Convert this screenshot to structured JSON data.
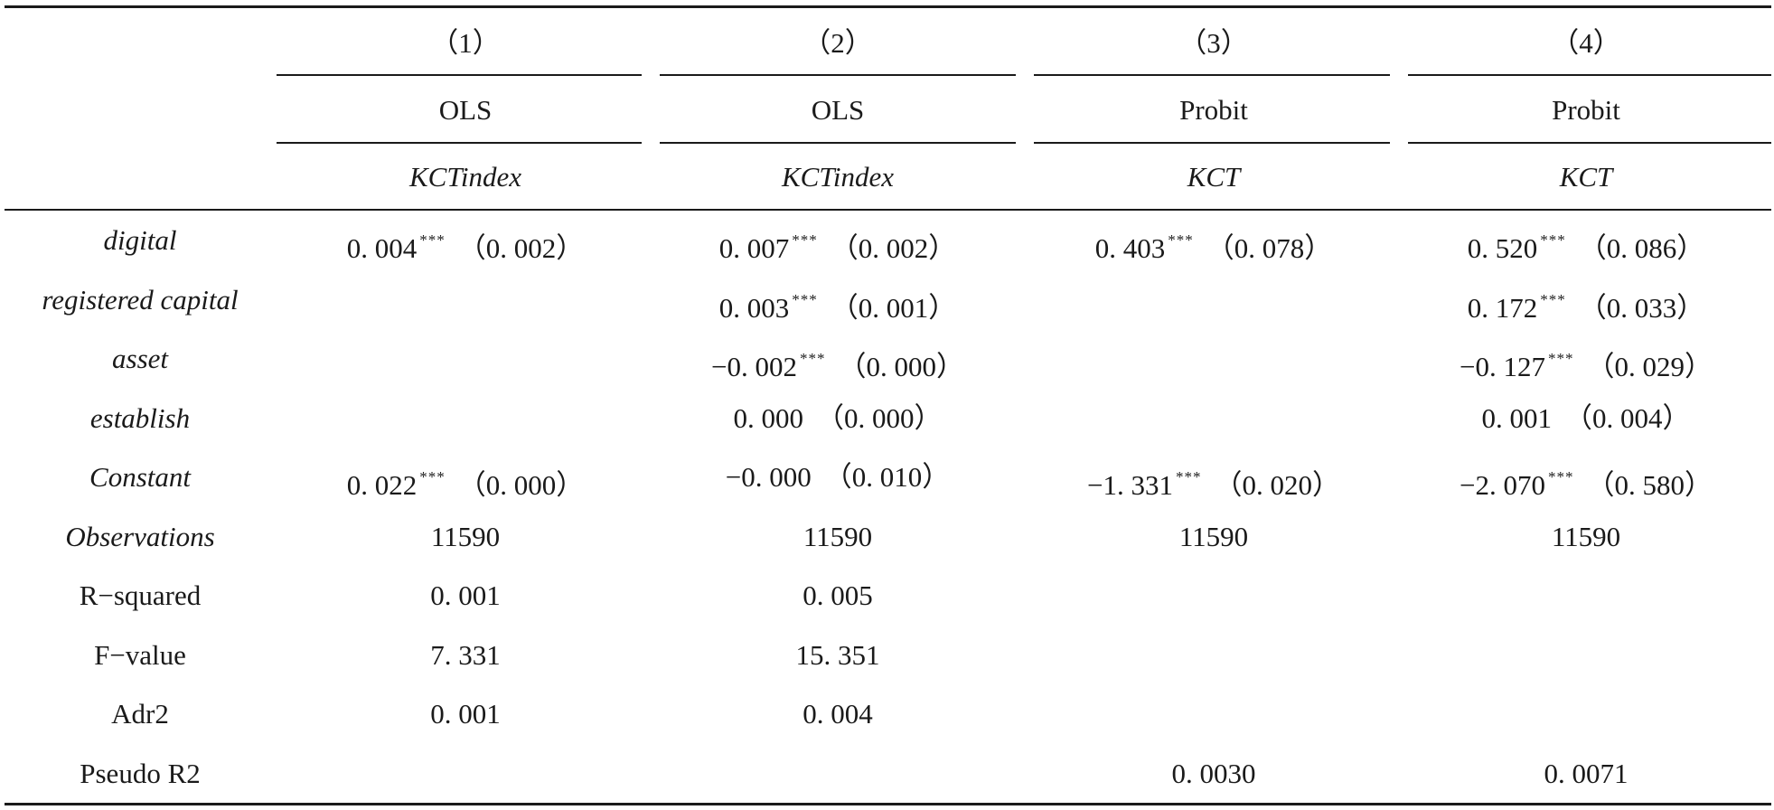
{
  "columns": [
    {
      "number": "（1）",
      "method": "OLS",
      "depvar": "KCTindex"
    },
    {
      "number": "（2）",
      "method": "OLS",
      "depvar": "KCTindex"
    },
    {
      "number": "（3）",
      "method": "Probit",
      "depvar": "KCT"
    },
    {
      "number": "（4）",
      "method": "Probit",
      "depvar": "KCT"
    }
  ],
  "rows": [
    {
      "label": "digital",
      "italic": true,
      "cells": [
        {
          "coef": "0. 004",
          "stars": "***",
          "se": "（0. 002）"
        },
        {
          "coef": "0. 007",
          "stars": "***",
          "se": "（0. 002）"
        },
        {
          "coef": "0. 403",
          "stars": "***",
          "se": "（0. 078）"
        },
        {
          "coef": "0. 520",
          "stars": "***",
          "se": "（0. 086）"
        }
      ]
    },
    {
      "label": "registered capital",
      "italic": true,
      "cells": [
        null,
        {
          "coef": "0. 003",
          "stars": "***",
          "se": "（0. 001）"
        },
        null,
        {
          "coef": "0. 172",
          "stars": "***",
          "se": "（0. 033）"
        }
      ]
    },
    {
      "label": "asset",
      "italic": true,
      "cells": [
        null,
        {
          "coef": "−0. 002",
          "stars": "***",
          "se": "（0. 000）"
        },
        null,
        {
          "coef": "−0. 127",
          "stars": "***",
          "se": "（0. 029）"
        }
      ]
    },
    {
      "label": "establish",
      "italic": true,
      "cells": [
        null,
        {
          "coef": "0. 000",
          "stars": "",
          "se": "（0. 000）"
        },
        null,
        {
          "coef": "0. 001",
          "stars": "",
          "se": "（0. 004）"
        }
      ]
    },
    {
      "label": "Constant",
      "italic": true,
      "cells": [
        {
          "coef": "0. 022",
          "stars": "***",
          "se": "（0. 000）"
        },
        {
          "coef": "−0. 000",
          "stars": "",
          "se": "（0. 010）"
        },
        {
          "coef": "−1. 331",
          "stars": "***",
          "se": "（0. 020）"
        },
        {
          "coef": "−2. 070",
          "stars": "***",
          "se": "（0. 580）"
        }
      ]
    },
    {
      "label": "Observations",
      "italic": true,
      "cells": [
        {
          "value": "11590"
        },
        {
          "value": "11590"
        },
        {
          "value": "11590"
        },
        {
          "value": "11590"
        }
      ]
    },
    {
      "label": "R−squared",
      "italic": false,
      "cells": [
        {
          "value": "0. 001"
        },
        {
          "value": "0. 005"
        },
        null,
        null
      ]
    },
    {
      "label": "F−value",
      "italic": false,
      "cells": [
        {
          "value": "7. 331"
        },
        {
          "value": "15. 351"
        },
        null,
        null
      ]
    },
    {
      "label": "Adr2",
      "italic": false,
      "cells": [
        {
          "value": "0. 001"
        },
        {
          "value": "0. 004"
        },
        null,
        null
      ]
    },
    {
      "label": "Pseudo R",
      "label_sup": "2",
      "italic": false,
      "cells": [
        null,
        null,
        {
          "value": "0. 0030"
        },
        {
          "value": "0. 0071"
        }
      ]
    }
  ]
}
